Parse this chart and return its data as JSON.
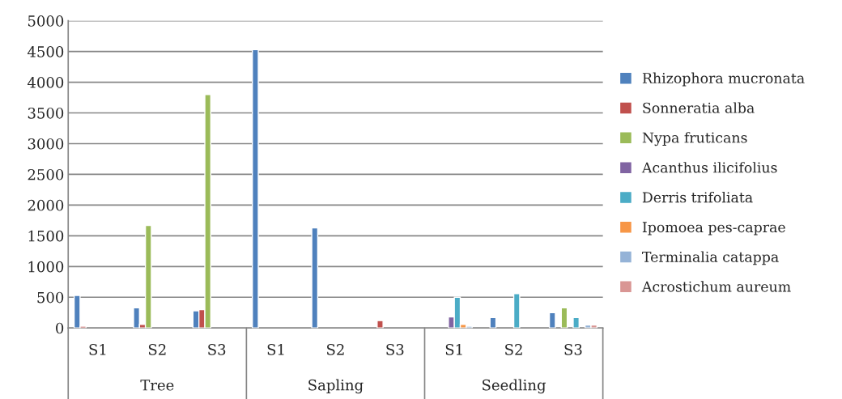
{
  "chart_data": {
    "type": "bar",
    "categories": [
      "S1",
      "S2",
      "S3",
      "S1",
      "S2",
      "S3",
      "S1",
      "S2",
      "S3"
    ],
    "annotations": [
      "Tree",
      "Sapling",
      "Seedling"
    ],
    "series": [
      {
        "name": "Rhizophora mucronata",
        "color": "#4f81bd",
        "values": [
          530,
          330,
          280,
          4530,
          1630,
          null,
          null,
          170,
          250
        ]
      },
      {
        "name": "Sonneratia alba",
        "color": "#c0504d",
        "values": [
          30,
          60,
          300,
          null,
          null,
          120,
          null,
          null,
          null
        ]
      },
      {
        "name": "Nypa fruticans",
        "color": "#9bbb59",
        "values": [
          null,
          1670,
          3800,
          null,
          null,
          null,
          null,
          null,
          330
        ]
      },
      {
        "name": "Acanthus ilicifolius",
        "color": "#8064a2",
        "values": [
          null,
          null,
          null,
          null,
          null,
          null,
          180,
          null,
          null
        ]
      },
      {
        "name": "Derris trifoliata",
        "color": "#4bacc6",
        "values": [
          null,
          null,
          null,
          null,
          null,
          null,
          500,
          560,
          170
        ]
      },
      {
        "name": "Ipomoea pes-caprae",
        "color": "#f79646",
        "values": [
          null,
          null,
          null,
          null,
          null,
          null,
          60,
          null,
          null
        ]
      },
      {
        "name": "Terminalia catappa",
        "color": "#95b3d7",
        "values": [
          null,
          null,
          null,
          null,
          null,
          null,
          30,
          null,
          50
        ]
      },
      {
        "name": "Acrostichum aureum",
        "color": "#d99694",
        "values": [
          null,
          null,
          null,
          null,
          null,
          null,
          null,
          null,
          50
        ]
      }
    ],
    "ylim": [
      0,
      5000
    ],
    "yticks": [
      0,
      500,
      1000,
      1500,
      2000,
      2500,
      3000,
      3500,
      4000,
      4500,
      5000
    ],
    "grid": "y",
    "legend": "right"
  }
}
